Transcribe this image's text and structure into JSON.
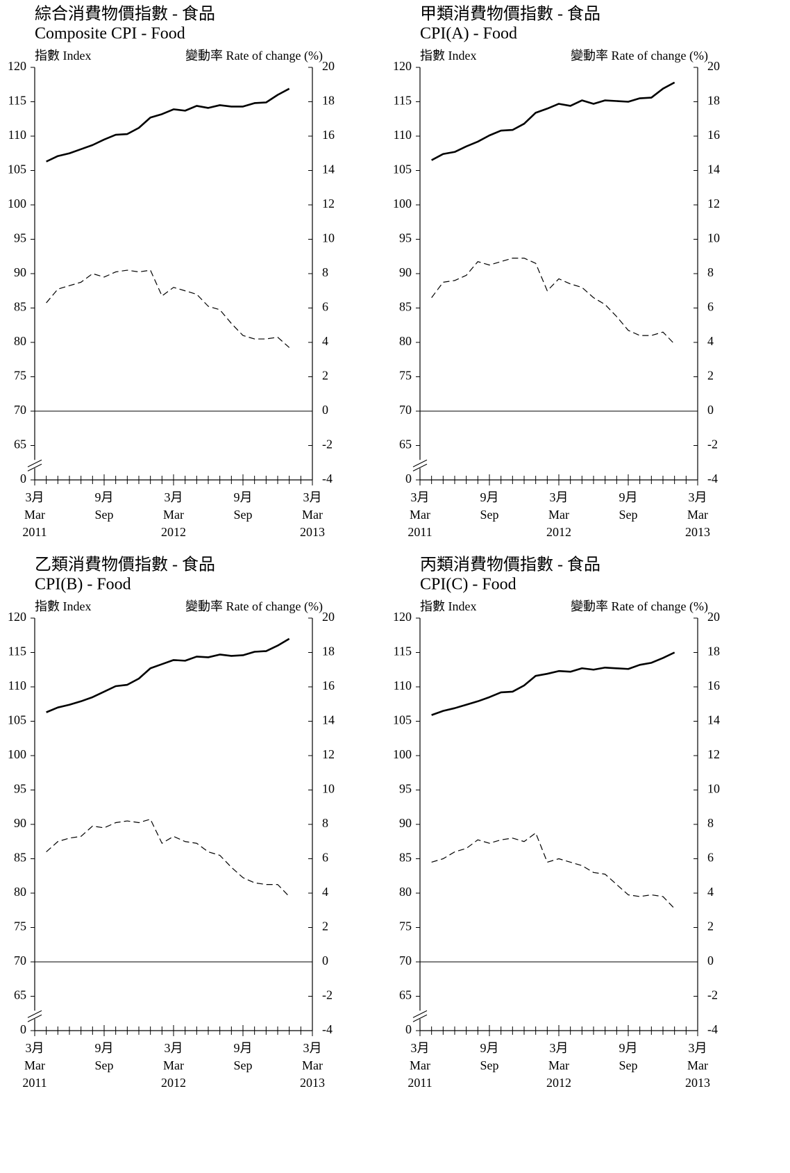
{
  "chart_data": [
    {
      "type": "line",
      "title": "綜合消費物價指數 - 食品",
      "subtitle": "Composite CPI - Food",
      "ylabel": "指數 Index",
      "y2label": "變動率 Rate of change (%)",
      "xlim": [
        0,
        24
      ],
      "xticks": [
        {
          "value": 0,
          "label": [
            "3月",
            "Mar",
            "2011"
          ]
        },
        {
          "value": 6,
          "label": [
            "9月",
            "Sep"
          ]
        },
        {
          "value": 12,
          "label": [
            "3月",
            "Mar",
            "2012"
          ]
        },
        {
          "value": 18,
          "label": [
            "9月",
            "Sep"
          ]
        },
        {
          "value": 24,
          "label": [
            "3月",
            "Mar",
            "2013"
          ]
        }
      ],
      "xminorticks": [
        1,
        2,
        3,
        4,
        5,
        7,
        8,
        9,
        10,
        11,
        13,
        14,
        15,
        16,
        17,
        19,
        20,
        21,
        22,
        23
      ],
      "ylim": [
        0,
        120
      ],
      "yticks": [
        0,
        65,
        70,
        75,
        80,
        85,
        90,
        95,
        100,
        105,
        110,
        115,
        120
      ],
      "ybreak": true,
      "y2lim": [
        -4,
        20
      ],
      "y2ticks": [
        -4,
        -2,
        0,
        2,
        4,
        6,
        8,
        10,
        12,
        14,
        16,
        18,
        20
      ],
      "y2zero_line": true,
      "x": [
        1,
        2,
        3,
        4,
        5,
        6,
        7,
        8,
        9,
        10,
        11,
        12,
        13,
        14,
        15,
        16,
        17,
        18,
        19,
        20,
        21,
        22
      ],
      "series": [
        {
          "color": "#000",
          "dashed": false,
          "values": [
            106.3,
            107.1,
            107.5,
            108.1,
            108.7,
            109.5,
            110.2,
            110.3,
            111.2,
            112.7,
            113.2,
            113.9,
            113.7,
            114.4,
            114.1,
            114.5,
            114.3,
            114.3,
            114.8,
            114.9,
            116.0,
            116.9
          ]
        },
        {
          "color": "#000",
          "dashed": true,
          "axis": "y2",
          "values": [
            6.3,
            7.1,
            7.3,
            7.5,
            8.0,
            7.8,
            8.1,
            8.2,
            8.1,
            8.2,
            6.7,
            7.2,
            7.0,
            6.8,
            6.1,
            5.9,
            5.1,
            4.4,
            4.2,
            4.2,
            4.3,
            3.7
          ]
        }
      ]
    },
    {
      "type": "line",
      "title": "甲類消費物價指數 - 食品",
      "subtitle": "CPI(A) - Food",
      "ylabel": "指數 Index",
      "y2label": "變動率 Rate of change (%)",
      "xlim": [
        0,
        24
      ],
      "xticks": [
        {
          "value": 0,
          "label": [
            "3月",
            "Mar",
            "2011"
          ]
        },
        {
          "value": 6,
          "label": [
            "9月",
            "Sep"
          ]
        },
        {
          "value": 12,
          "label": [
            "3月",
            "Mar",
            "2012"
          ]
        },
        {
          "value": 18,
          "label": [
            "9月",
            "Sep"
          ]
        },
        {
          "value": 24,
          "label": [
            "3月",
            "Mar",
            "2013"
          ]
        }
      ],
      "xminorticks": [
        1,
        2,
        3,
        4,
        5,
        7,
        8,
        9,
        10,
        11,
        13,
        14,
        15,
        16,
        17,
        19,
        20,
        21,
        22,
        23
      ],
      "ylim": [
        0,
        120
      ],
      "yticks": [
        0,
        65,
        70,
        75,
        80,
        85,
        90,
        95,
        100,
        105,
        110,
        115,
        120
      ],
      "ybreak": true,
      "y2lim": [
        -4,
        20
      ],
      "y2ticks": [
        -4,
        -2,
        0,
        2,
        4,
        6,
        8,
        10,
        12,
        14,
        16,
        18,
        20
      ],
      "y2zero_line": true,
      "x": [
        1,
        2,
        3,
        4,
        5,
        6,
        7,
        8,
        9,
        10,
        11,
        12,
        13,
        14,
        15,
        16,
        17,
        18,
        19,
        20,
        21,
        22
      ],
      "series": [
        {
          "color": "#000",
          "dashed": false,
          "values": [
            106.5,
            107.4,
            107.7,
            108.5,
            109.2,
            110.1,
            110.8,
            110.9,
            111.8,
            113.4,
            114.0,
            114.7,
            114.4,
            115.2,
            114.7,
            115.2,
            115.1,
            115.0,
            115.5,
            115.6,
            116.9,
            117.8
          ]
        },
        {
          "color": "#000",
          "dashed": true,
          "axis": "y2",
          "values": [
            6.6,
            7.5,
            7.6,
            7.9,
            8.7,
            8.5,
            8.7,
            8.9,
            8.9,
            8.6,
            7.0,
            7.7,
            7.4,
            7.2,
            6.6,
            6.2,
            5.5,
            4.7,
            4.4,
            4.4,
            4.6,
            3.9
          ]
        }
      ]
    },
    {
      "type": "line",
      "title": "乙類消費物價指數 - 食品",
      "subtitle": "CPI(B) - Food",
      "ylabel": "指數 Index",
      "y2label": "變動率 Rate of change (%)",
      "xlim": [
        0,
        24
      ],
      "xticks": [
        {
          "value": 0,
          "label": [
            "3月",
            "Mar",
            "2011"
          ]
        },
        {
          "value": 6,
          "label": [
            "9月",
            "Sep"
          ]
        },
        {
          "value": 12,
          "label": [
            "3月",
            "Mar",
            "2012"
          ]
        },
        {
          "value": 18,
          "label": [
            "9月",
            "Sep"
          ]
        },
        {
          "value": 24,
          "label": [
            "3月",
            "Mar",
            "2013"
          ]
        }
      ],
      "xminorticks": [
        1,
        2,
        3,
        4,
        5,
        7,
        8,
        9,
        10,
        11,
        13,
        14,
        15,
        16,
        17,
        19,
        20,
        21,
        22,
        23
      ],
      "ylim": [
        0,
        120
      ],
      "yticks": [
        0,
        65,
        70,
        75,
        80,
        85,
        90,
        95,
        100,
        105,
        110,
        115,
        120
      ],
      "ybreak": true,
      "y2lim": [
        -4,
        20
      ],
      "y2ticks": [
        -4,
        -2,
        0,
        2,
        4,
        6,
        8,
        10,
        12,
        14,
        16,
        18,
        20
      ],
      "y2zero_line": true,
      "x": [
        1,
        2,
        3,
        4,
        5,
        6,
        7,
        8,
        9,
        10,
        11,
        12,
        13,
        14,
        15,
        16,
        17,
        18,
        19,
        20,
        21,
        22
      ],
      "series": [
        {
          "color": "#000",
          "dashed": false,
          "values": [
            106.3,
            107.0,
            107.4,
            107.9,
            108.5,
            109.3,
            110.1,
            110.3,
            111.2,
            112.7,
            113.3,
            113.9,
            113.8,
            114.4,
            114.3,
            114.7,
            114.5,
            114.6,
            115.1,
            115.2,
            116.0,
            117.0
          ]
        },
        {
          "color": "#000",
          "dashed": true,
          "axis": "y2",
          "values": [
            6.4,
            7.0,
            7.2,
            7.3,
            7.9,
            7.8,
            8.1,
            8.2,
            8.1,
            8.3,
            6.9,
            7.3,
            7.0,
            6.9,
            6.4,
            6.2,
            5.5,
            4.9,
            4.6,
            4.5,
            4.5,
            3.8
          ]
        }
      ]
    },
    {
      "type": "line",
      "title": "丙類消費物價指數 - 食品",
      "subtitle": "CPI(C) - Food",
      "ylabel": "指數 Index",
      "y2label": "變動率 Rate of change (%)",
      "xlim": [
        0,
        24
      ],
      "xticks": [
        {
          "value": 0,
          "label": [
            "3月",
            "Mar",
            "2011"
          ]
        },
        {
          "value": 6,
          "label": [
            "9月",
            "Sep"
          ]
        },
        {
          "value": 12,
          "label": [
            "3月",
            "Mar",
            "2012"
          ]
        },
        {
          "value": 18,
          "label": [
            "9月",
            "Sep"
          ]
        },
        {
          "value": 24,
          "label": [
            "3月",
            "Mar",
            "2013"
          ]
        }
      ],
      "xminorticks": [
        1,
        2,
        3,
        4,
        5,
        7,
        8,
        9,
        10,
        11,
        13,
        14,
        15,
        16,
        17,
        19,
        20,
        21,
        22,
        23
      ],
      "ylim": [
        0,
        120
      ],
      "yticks": [
        0,
        65,
        70,
        75,
        80,
        85,
        90,
        95,
        100,
        105,
        110,
        115,
        120
      ],
      "ybreak": true,
      "y2lim": [
        -4,
        20
      ],
      "y2ticks": [
        -4,
        -2,
        0,
        2,
        4,
        6,
        8,
        10,
        12,
        14,
        16,
        18,
        20
      ],
      "y2zero_line": true,
      "x": [
        1,
        2,
        3,
        4,
        5,
        6,
        7,
        8,
        9,
        10,
        11,
        12,
        13,
        14,
        15,
        16,
        17,
        18,
        19,
        20,
        21,
        22
      ],
      "series": [
        {
          "color": "#000",
          "dashed": false,
          "values": [
            105.9,
            106.5,
            106.9,
            107.4,
            107.9,
            108.5,
            109.2,
            109.3,
            110.2,
            111.6,
            111.9,
            112.3,
            112.2,
            112.7,
            112.5,
            112.8,
            112.7,
            112.6,
            113.2,
            113.5,
            114.2,
            115.0
          ]
        },
        {
          "color": "#000",
          "dashed": true,
          "axis": "y2",
          "values": [
            5.8,
            6.0,
            6.4,
            6.6,
            7.1,
            6.9,
            7.1,
            7.2,
            7.0,
            7.5,
            5.8,
            6.0,
            5.8,
            5.6,
            5.2,
            5.1,
            4.5,
            3.9,
            3.8,
            3.9,
            3.8,
            3.1
          ]
        }
      ]
    }
  ]
}
